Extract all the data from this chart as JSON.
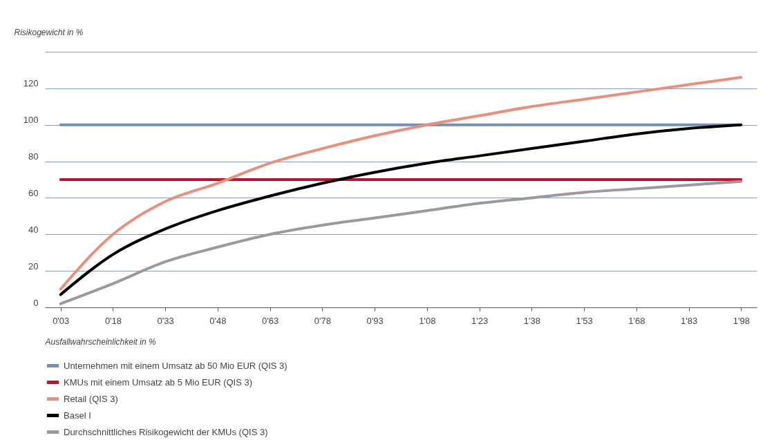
{
  "chart_data": {
    "type": "line",
    "ylabel": "Risikogewicht in %",
    "xlabel": "Ausfallwahrscheinlichkeit in %",
    "categories": [
      "0'03",
      "0'18",
      "0'33",
      "0'48",
      "0'63",
      "0'78",
      "0'93",
      "1'08",
      "1'23",
      "1'38",
      "1'53",
      "1'68",
      "1'83",
      "1'98"
    ],
    "ylim": [
      0,
      140
    ],
    "yticks": [
      0,
      20,
      40,
      60,
      80,
      100,
      120,
      {
        "value": 140,
        "label": null
      }
    ],
    "grid": "y",
    "legend": "bottom",
    "line_style": "solid",
    "series": [
      {
        "name": "Unternehmen mit einem Umsatz ab 50 Mio EUR (QIS 3)",
        "color": "#7391b5",
        "values": [
          100,
          100,
          100,
          100,
          100,
          100,
          100,
          100,
          100,
          100,
          100,
          100,
          100,
          100
        ]
      },
      {
        "name": "KMUs mit einem Umsatz ab 5 Mio EUR (QIS 3)",
        "color": "#c8102e",
        "values": [
          70,
          70,
          70,
          70,
          70,
          70,
          70,
          70,
          70,
          70,
          70,
          70,
          70,
          70
        ]
      },
      {
        "name": "Retail (QIS 3)",
        "color": "#e8907c",
        "values": [
          10,
          40,
          58,
          68,
          79,
          87,
          94,
          100,
          105,
          110,
          114,
          118,
          122,
          126
        ]
      },
      {
        "name": "Basel I",
        "color": "#000000",
        "values": [
          7,
          29,
          43,
          53,
          61,
          68,
          74,
          79,
          83,
          87,
          91,
          95,
          98,
          100
        ]
      },
      {
        "name": "Durchschnittliches Risikogewicht der KMUs (QIS 3)",
        "color": "#9a9a9e",
        "values": [
          2,
          13,
          25,
          33,
          40,
          45,
          49,
          53,
          57,
          60,
          63,
          65,
          67,
          69
        ]
      }
    ]
  }
}
